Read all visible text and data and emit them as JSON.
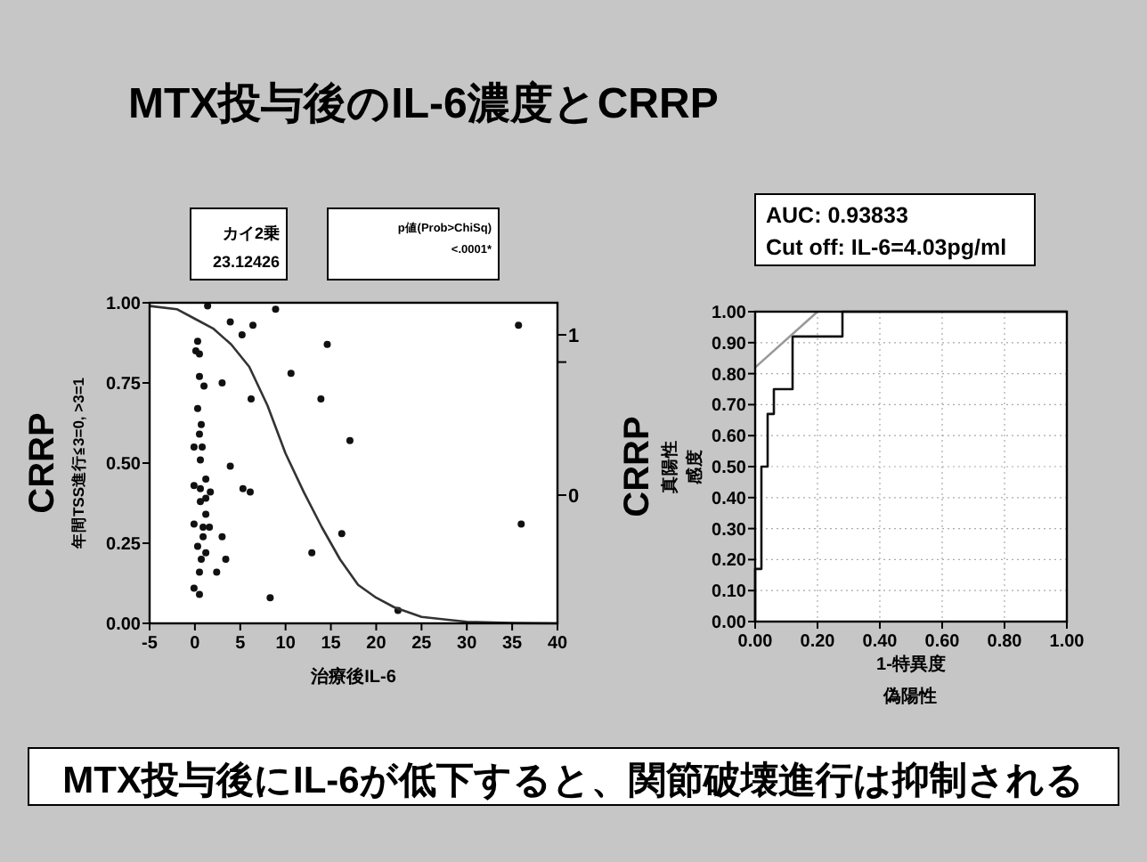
{
  "chart_data": [
    {
      "type": "scatter",
      "title": "MTX投与後のIL-6濃度とCRRP",
      "xlabel": "治療後IL-6",
      "ylabel": "年間TSS進行≦3=0, >3=1",
      "xlim": [
        -5,
        40
      ],
      "xticks": [
        -5,
        0,
        5,
        10,
        15,
        20,
        25,
        30,
        35,
        40
      ],
      "ylim": [
        0,
        1
      ],
      "yticks": [
        {
          "value": 0,
          "label": "0.00"
        },
        {
          "value": 0.25,
          "label": "0.25"
        },
        {
          "value": 0.5,
          "label": "0.50"
        },
        {
          "value": 0.75,
          "label": "0.75"
        },
        {
          "value": 1,
          "label": "1.00"
        }
      ],
      "y2lim": [
        0,
        1
      ],
      "y2ticks": [
        {
          "value": 0.9,
          "label": "1"
        },
        {
          "value": 0.815,
          "label": null
        },
        {
          "value": 0.4,
          "label": "0"
        }
      ],
      "annotations": [
        "CRRP",
        "カイ2乗",
        "23.12426",
        "p値(Prob>ChiSq)",
        "<.0001*",
        "MTX投与後にIL-6が低下すると、関節破壊進行は抑制される"
      ],
      "series": [
        {
          "color": "#111111",
          "marker": "circle",
          "x": [
            1.4,
            3.9,
            8.9,
            6.4,
            5.2,
            14.6,
            35.7,
            0.3,
            0.1,
            0.5,
            0.5,
            1.0,
            3.0,
            10.6,
            6.2,
            13.9,
            0.3,
            0.7,
            0.5,
            17.1,
            -0.1,
            0.8,
            0.6,
            3.9,
            1.2,
            -0.1,
            0.6,
            5.3,
            6.1,
            1.7,
            1.2,
            0.6,
            1.2,
            -0.1,
            0.9,
            1.6,
            36.0,
            3.0,
            0.9,
            16.2,
            0.3,
            0.7,
            1.2,
            3.4,
            12.9,
            0.5,
            2.4,
            -0.1,
            0.5,
            8.3,
            22.4
          ],
          "values": [
            0.99,
            0.94,
            0.98,
            0.93,
            0.9,
            0.87,
            0.93,
            0.88,
            0.85,
            0.84,
            0.77,
            0.74,
            0.75,
            0.78,
            0.7,
            0.7,
            0.67,
            0.62,
            0.59,
            0.57,
            0.55,
            0.55,
            0.51,
            0.49,
            0.45,
            0.43,
            0.42,
            0.42,
            0.41,
            0.41,
            0.39,
            0.38,
            0.34,
            0.31,
            0.3,
            0.3,
            0.31,
            0.27,
            0.27,
            0.28,
            0.24,
            0.2,
            0.22,
            0.2,
            0.22,
            0.16,
            0.16,
            0.11,
            0.09,
            0.08,
            0.04
          ]
        },
        {
          "type": "line",
          "color": "#333333",
          "marker": "none",
          "x": [
            -5,
            -2,
            0,
            2,
            4,
            6,
            8,
            10,
            12,
            14,
            16,
            18,
            20,
            22,
            25,
            30,
            35,
            40
          ],
          "values": [
            0.99,
            0.98,
            0.95,
            0.92,
            0.87,
            0.8,
            0.68,
            0.53,
            0.41,
            0.3,
            0.2,
            0.12,
            0.08,
            0.05,
            0.02,
            0.005,
            0.001,
            0
          ]
        }
      ]
    },
    {
      "type": "line",
      "xlabel": "1-特異度",
      "ylabel": "感度",
      "grid": true,
      "xlim": [
        0,
        1
      ],
      "xticks": [
        {
          "value": 0,
          "label": "0.00"
        },
        {
          "value": 0.2,
          "label": "0.20"
        },
        {
          "value": 0.4,
          "label": "0.40"
        },
        {
          "value": 0.6,
          "label": "0.60"
        },
        {
          "value": 0.8,
          "label": "0.80"
        },
        {
          "value": 1,
          "label": "1.00"
        }
      ],
      "ylim": [
        0,
        1
      ],
      "yticks": [
        {
          "value": 0,
          "label": "0.00"
        },
        {
          "value": 0.1,
          "label": "0.10"
        },
        {
          "value": 0.2,
          "label": "0.20"
        },
        {
          "value": 0.3,
          "label": "0.30"
        },
        {
          "value": 0.4,
          "label": "0.40"
        },
        {
          "value": 0.5,
          "label": "0.50"
        },
        {
          "value": 0.6,
          "label": "0.60"
        },
        {
          "value": 0.7,
          "label": "0.70"
        },
        {
          "value": 0.8,
          "label": "0.80"
        },
        {
          "value": 0.9,
          "label": "0.90"
        },
        {
          "value": 1,
          "label": "1.00"
        }
      ],
      "annotations": [
        "CRRP",
        "AUC: 0.93833",
        "Cut off: IL-6=4.03pg/ml",
        "真陽性",
        "偽陽性"
      ],
      "series": [
        {
          "color": "#111111",
          "marker": "none",
          "line_style": "solid",
          "x": [
            0,
            0,
            0.02,
            0.02,
            0.04,
            0.04,
            0.06,
            0.06,
            0.12,
            0.12,
            0.28,
            0.28,
            1.0
          ],
          "values": [
            0,
            0.17,
            0.17,
            0.5,
            0.5,
            0.67,
            0.67,
            0.75,
            0.75,
            0.92,
            0.92,
            1.0,
            1.0
          ]
        },
        {
          "color": "#999999",
          "marker": "none",
          "line_style": "solid",
          "x": [
            0,
            0.2
          ],
          "values": [
            0.82,
            1.0
          ]
        }
      ]
    }
  ]
}
